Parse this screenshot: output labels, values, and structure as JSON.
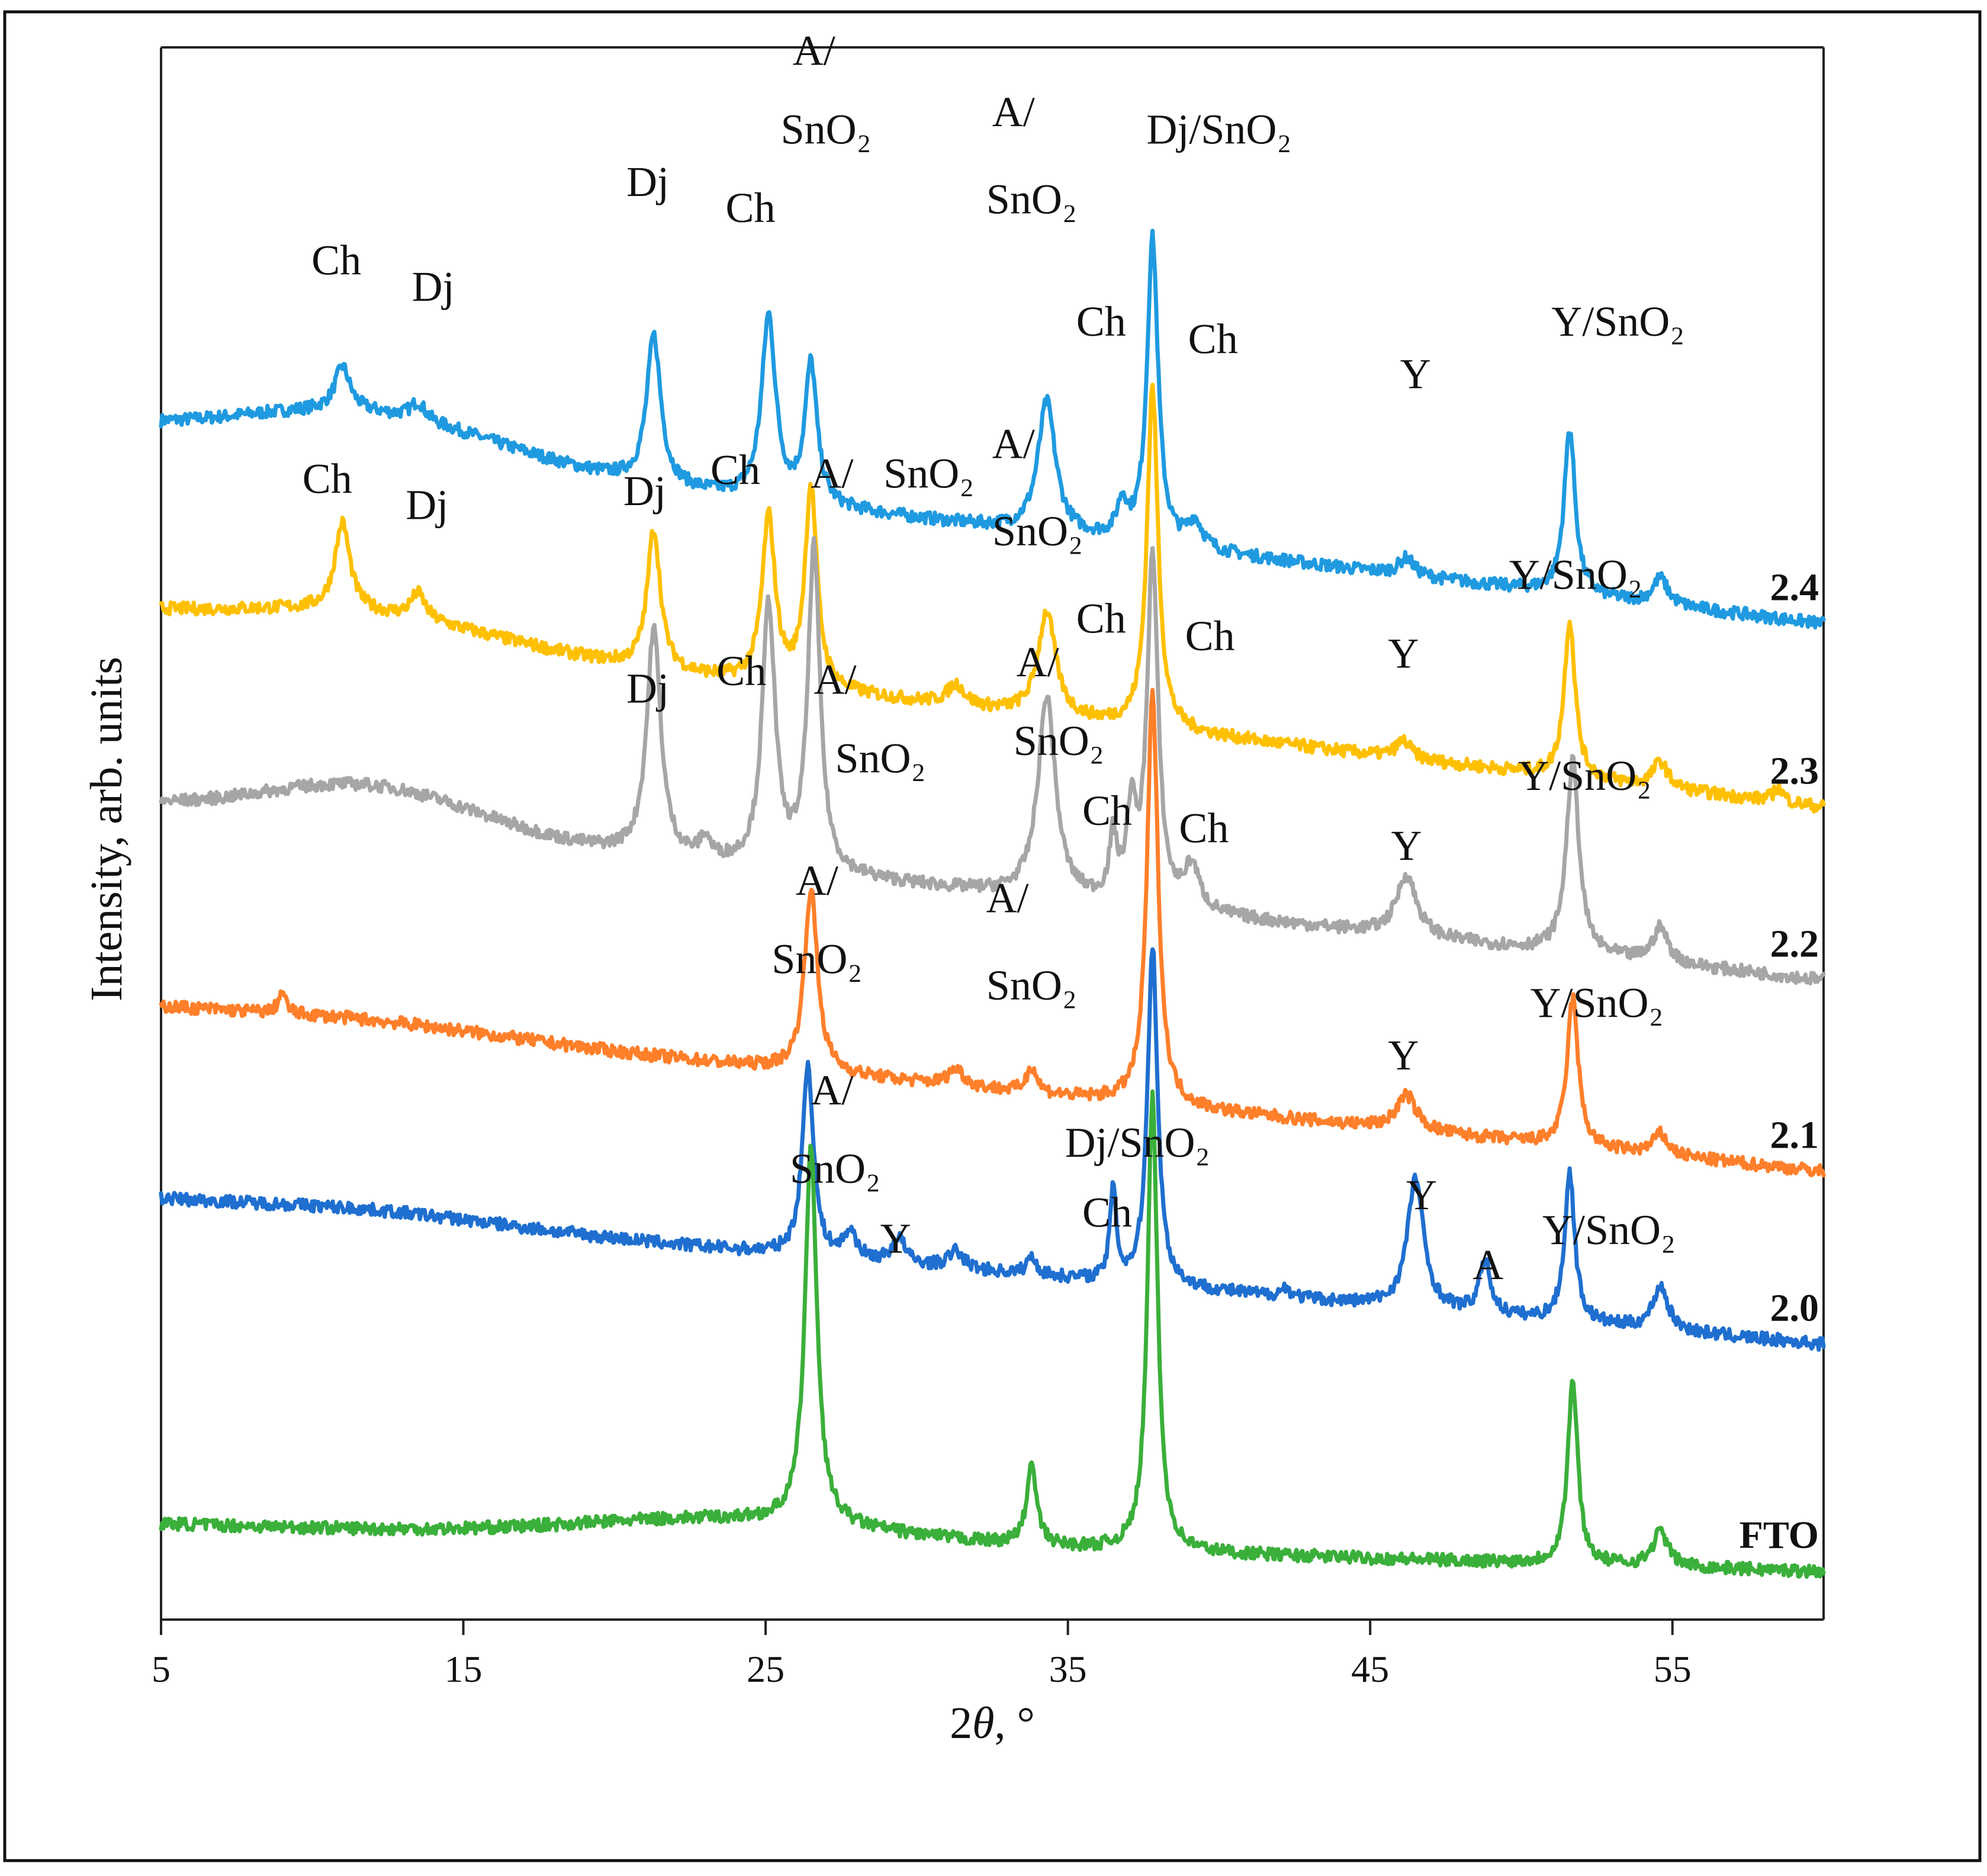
{
  "chart_data": {
    "type": "line",
    "title": "",
    "xlabel": {
      "prefix": "2",
      "symbol": "θ",
      "suffix": ", °"
    },
    "ylabel": "Intensity, arb. units",
    "xlim": [
      5,
      60
    ],
    "x_ticks": [
      5,
      15,
      25,
      35,
      45,
      55
    ],
    "y_ticks_shown": false,
    "grid": false,
    "series": [
      {
        "name": "2.4",
        "color": "#1f9ae0",
        "baseline": 6.8,
        "slope": -0.02,
        "hump": {
          "center": 12,
          "width": 6,
          "height": 0.25
        },
        "peaks": [
          [
            11,
            0.25,
            0.3
          ],
          [
            13.5,
            0.1,
            0.3
          ],
          [
            21.3,
            0.85,
            0.28
          ],
          [
            25.1,
            1.05,
            0.28
          ],
          [
            26.5,
            0.8,
            0.24
          ],
          [
            34.3,
            0.75,
            0.35
          ],
          [
            36.8,
            0.2,
            0.2
          ],
          [
            37.8,
            1.75,
            0.22
          ],
          [
            39.2,
            0.15,
            0.3
          ],
          [
            46.2,
            0.1,
            0.3
          ],
          [
            51.6,
            0.95,
            0.22
          ],
          [
            54.6,
            0.15,
            0.3
          ]
        ]
      },
      {
        "name": "2.3",
        "color": "#ffc000",
        "baseline": 5.75,
        "slope": -0.02,
        "hump": {
          "center": 12,
          "width": 6,
          "height": 0.15
        },
        "peaks": [
          [
            11,
            0.5,
            0.3
          ],
          [
            13.5,
            0.15,
            0.3
          ],
          [
            21.3,
            0.8,
            0.26
          ],
          [
            25.1,
            0.95,
            0.26
          ],
          [
            26.5,
            1.15,
            0.24
          ],
          [
            31.3,
            0.12,
            0.35
          ],
          [
            34.3,
            0.6,
            0.35
          ],
          [
            37.8,
            1.95,
            0.22
          ],
          [
            46.1,
            0.1,
            0.3
          ],
          [
            51.6,
            0.9,
            0.22
          ],
          [
            54.6,
            0.15,
            0.3
          ],
          [
            58.5,
            0.08,
            0.2
          ]
        ]
      },
      {
        "name": "2.2",
        "color": "#a6a6a6",
        "baseline": 4.65,
        "slope": -0.018,
        "hump": {
          "center": 12,
          "width": 5,
          "height": 0.25
        },
        "peaks": [
          [
            21.3,
            1.3,
            0.28
          ],
          [
            23,
            0.12,
            0.2
          ],
          [
            25.1,
            1.5,
            0.26
          ],
          [
            26.6,
            1.85,
            0.24
          ],
          [
            34.3,
            1.15,
            0.35
          ],
          [
            36.5,
            0.35,
            0.15
          ],
          [
            37.1,
            0.5,
            0.18
          ],
          [
            37.8,
            2.0,
            0.22
          ],
          [
            39.1,
            0.25,
            0.3
          ],
          [
            46.2,
            0.35,
            0.4
          ],
          [
            51.7,
            1.1,
            0.25
          ],
          [
            54.6,
            0.2,
            0.3
          ]
        ]
      },
      {
        "name": "2.1",
        "color": "#ff7f2a",
        "baseline": 3.5,
        "slope": -0.017,
        "hump": {
          "center": 12,
          "width": 6,
          "height": 0.05
        },
        "peaks": [
          [
            9,
            0.12,
            0.15
          ],
          [
            26.5,
            1.05,
            0.26
          ],
          [
            31.3,
            0.1,
            0.3
          ],
          [
            33.8,
            0.15,
            0.2
          ],
          [
            37.8,
            2.35,
            0.22
          ],
          [
            46.2,
            0.2,
            0.4
          ],
          [
            51.7,
            0.85,
            0.22
          ],
          [
            54.6,
            0.12,
            0.3
          ]
        ]
      },
      {
        "name": "2.0",
        "color": "#1f6fd0",
        "baseline": 2.4,
        "slope": -0.015,
        "hump": {
          "center": 12,
          "width": 6,
          "height": 0.05
        },
        "peaks": [
          [
            26.4,
            1.1,
            0.22
          ],
          [
            27.8,
            0.15,
            0.25
          ],
          [
            29.4,
            0.15,
            0.25
          ],
          [
            31.3,
            0.1,
            0.3
          ],
          [
            33.8,
            0.1,
            0.2
          ],
          [
            36.5,
            0.55,
            0.12
          ],
          [
            37.8,
            1.95,
            0.2
          ],
          [
            42.2,
            0.05,
            0.2
          ],
          [
            46.5,
            0.75,
            0.32
          ],
          [
            48.8,
            0.3,
            0.22
          ],
          [
            51.6,
            0.85,
            0.2
          ],
          [
            54.6,
            0.25,
            0.3
          ]
        ]
      },
      {
        "name": "FTO",
        "color": "#3aaf3a",
        "baseline": 0.55,
        "slope": -0.005,
        "hump": {
          "center": 24,
          "width": 7,
          "height": 0.12
        },
        "peaks": [
          [
            26.5,
            2.15,
            0.24
          ],
          [
            33.8,
            0.45,
            0.2
          ],
          [
            37.8,
            2.6,
            0.2
          ],
          [
            51.7,
            1.05,
            0.2
          ],
          [
            54.6,
            0.2,
            0.3
          ]
        ]
      }
    ],
    "ylim": [
      0,
      9
    ],
    "annotations": [
      {
        "text": "Ch",
        "x": 10.8,
        "y": 7.7
      },
      {
        "text": "Dj",
        "x": 14,
        "y": 7.55
      },
      {
        "text": "Dj",
        "x": 21.1,
        "y": 8.15
      },
      {
        "text": "Ch",
        "x": 24.5,
        "y": 8.0
      },
      {
        "text": "A/",
        "x": 26.6,
        "y": 8.9
      },
      {
        "text": "SnO₂",
        "x": 27,
        "y": 8.45
      },
      {
        "text": "A/",
        "x": 33.2,
        "y": 8.55
      },
      {
        "text": "SnO₂",
        "x": 33.8,
        "y": 8.05
      },
      {
        "text": "Dj/SnO₂",
        "x": 40,
        "y": 8.45
      },
      {
        "text": "Ch",
        "x": 36.1,
        "y": 7.35
      },
      {
        "text": "Ch",
        "x": 39.8,
        "y": 7.25
      },
      {
        "text": "Y",
        "x": 46.5,
        "y": 7.05
      },
      {
        "text": "Y/SnO₂",
        "x": 53.2,
        "y": 7.35
      },
      {
        "text": "Ch",
        "x": 10.5,
        "y": 6.45
      },
      {
        "text": "Dj",
        "x": 13.8,
        "y": 6.3
      },
      {
        "text": "Dj",
        "x": 21,
        "y": 6.38
      },
      {
        "text": "Ch",
        "x": 24,
        "y": 6.5
      },
      {
        "text": "A/",
        "x": 27.2,
        "y": 6.48
      },
      {
        "text": "SnO₂",
        "x": 30.4,
        "y": 6.48
      },
      {
        "text": "A/",
        "x": 33.2,
        "y": 6.65
      },
      {
        "text": "SnO₂",
        "x": 34,
        "y": 6.15
      },
      {
        "text": "Ch",
        "x": 36.1,
        "y": 5.65
      },
      {
        "text": "Ch",
        "x": 39.7,
        "y": 5.55
      },
      {
        "text": "Y",
        "x": 46.1,
        "y": 5.45
      },
      {
        "text": "Y/SnO₂",
        "x": 51.8,
        "y": 5.9
      },
      {
        "text": "Dj",
        "x": 21.1,
        "y": 5.25
      },
      {
        "text": "Ch",
        "x": 24.2,
        "y": 5.35
      },
      {
        "text": "A/",
        "x": 27.3,
        "y": 5.3
      },
      {
        "text": "SnO₂",
        "x": 28.8,
        "y": 4.85
      },
      {
        "text": "A/",
        "x": 34,
        "y": 5.4
      },
      {
        "text": "SnO₂",
        "x": 34.7,
        "y": 4.95
      },
      {
        "text": "Ch",
        "x": 36.3,
        "y": 4.55
      },
      {
        "text": "Ch",
        "x": 39.5,
        "y": 4.45
      },
      {
        "text": "Y",
        "x": 46.2,
        "y": 4.35
      },
      {
        "text": "Y/SnO₂",
        "x": 52.1,
        "y": 4.75
      },
      {
        "text": "A/",
        "x": 26.7,
        "y": 4.15
      },
      {
        "text": "SnO₂",
        "x": 26.7,
        "y": 3.7
      },
      {
        "text": "A/",
        "x": 33,
        "y": 4.05
      },
      {
        "text": "SnO₂",
        "x": 33.8,
        "y": 3.55
      },
      {
        "text": "Y",
        "x": 46.1,
        "y": 3.15
      },
      {
        "text": "Y/SnO₂",
        "x": 52.5,
        "y": 3.45
      },
      {
        "text": "A/",
        "x": 27.2,
        "y": 2.95
      },
      {
        "text": "SnO₂",
        "x": 27.3,
        "y": 2.5
      },
      {
        "text": "Dj/SnO₂",
        "x": 37.3,
        "y": 2.65
      },
      {
        "text": "Y",
        "x": 29.3,
        "y": 2.1
      },
      {
        "text": "Ch",
        "x": 36.3,
        "y": 2.25
      },
      {
        "text": "Y",
        "x": 46.7,
        "y": 2.35
      },
      {
        "text": "A",
        "x": 48.9,
        "y": 1.95
      },
      {
        "text": "Y/SnO₂",
        "x": 52.9,
        "y": 2.15
      }
    ]
  }
}
